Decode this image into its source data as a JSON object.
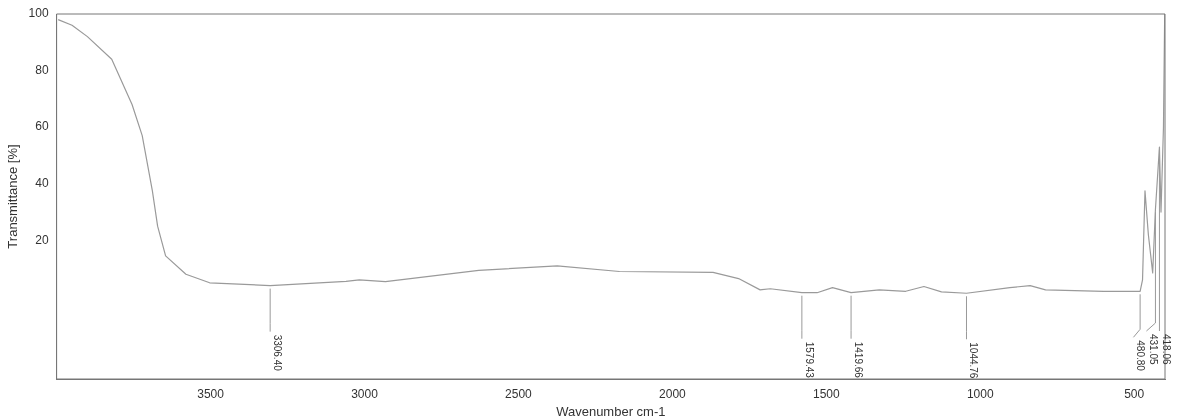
{
  "chart_data": {
    "type": "line",
    "xlabel": "Wavenumber cm-1",
    "ylabel": "Transmittance [%]",
    "x": [
      3995,
      3950,
      3900,
      3821,
      3755,
      3722,
      3689,
      3672,
      3646,
      3580,
      3503,
      3306.4,
      3060,
      3017,
      2932,
      2629,
      2374,
      2172,
      1868,
      1785,
      1715,
      1682,
      1579.43,
      1530,
      1480,
      1419.66,
      1328,
      1242,
      1183,
      1126,
      1044.76,
      904,
      838,
      788,
      599,
      480.8,
      473,
      465,
      454,
      440,
      431.05,
      418.06,
      413,
      405,
      401
    ],
    "series": [
      {
        "color": "#9a9a9a",
        "values": [
          98,
          96,
          92,
          84,
          68,
          57,
          37.5,
          25,
          14.5,
          8,
          5,
          4,
          5.5,
          6,
          5.4,
          9.4,
          11,
          9,
          8.7,
          6.5,
          2.5,
          2.9,
          1.5,
          1.5,
          3.3,
          1.5,
          2.5,
          2,
          3.7,
          1.8,
          1.3,
          3.3,
          4,
          2.5,
          2,
          2,
          6,
          37.5,
          22,
          8.5,
          31,
          53,
          30,
          60,
          100
        ]
      }
    ],
    "xlim": [
      4000,
      400
    ],
    "xticks": [
      3500,
      3000,
      2500,
      2000,
      1500,
      1000,
      500
    ],
    "ylim": [
      -29,
      100
    ],
    "yticks": [
      20,
      40,
      60,
      80,
      100
    ],
    "grid": false,
    "legend": false,
    "marker": "none",
    "line_style": "solid",
    "annotations": [
      {
        "text": "3306.40",
        "x": 3306.4,
        "y": 4
      },
      {
        "text": "1579.43",
        "x": 1579.43,
        "y": 1.5
      },
      {
        "text": "1419.66",
        "x": 1419.66,
        "y": 1.5
      },
      {
        "text": "1044.76",
        "x": 1044.76,
        "y": 1.3
      },
      {
        "text": "480.80",
        "x": 480.8,
        "y": 2
      },
      {
        "text": "431.05",
        "x": 431.05,
        "y": 31
      },
      {
        "text": "418.06",
        "x": 418.06,
        "y": 53
      }
    ]
  }
}
